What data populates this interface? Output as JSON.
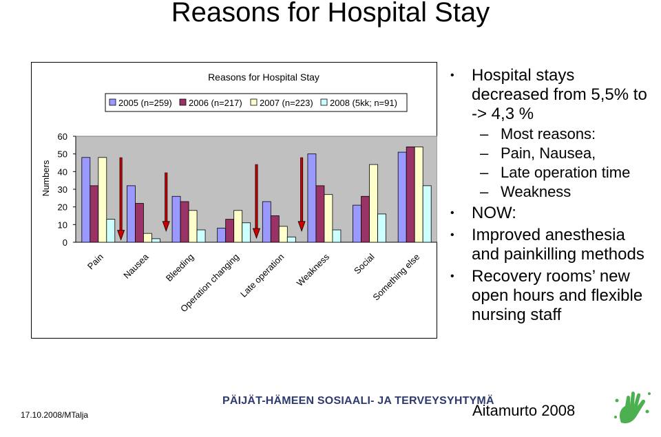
{
  "slide": {
    "title": "Reasons for Hospital Stay",
    "footer_date": "17.10.2008/MTalja",
    "footer_org": "PÄIJÄT-HÄMEEN SOSIAALI- JA TERVEYSYHTYMÄ",
    "footer_author": "Aitamurto 2008",
    "logo_icon": "green-handprint-logo-icon"
  },
  "bullets": [
    {
      "level": 1,
      "text": "Hospital stays decreased from 5,5% to -> 4,3 %"
    },
    {
      "level": 2,
      "text": "Most reasons:"
    },
    {
      "level": 2,
      "text": " Pain, Nausea,"
    },
    {
      "level": 2,
      "text": " Late operation time"
    },
    {
      "level": 2,
      "text": "Weakness"
    },
    {
      "level": 1,
      "text": "NOW:"
    },
    {
      "level": 1,
      "text": "Improved anesthesia and painkilling methods"
    },
    {
      "level": 1,
      "text": "Recovery rooms’ new open hours and flexible nursing staff"
    }
  ],
  "chart_data": {
    "type": "bar",
    "title": "Reasons for Hospital Stay",
    "ylabel": "Numbers",
    "xlabel": "",
    "ylim": [
      0,
      60
    ],
    "yticks": [
      0,
      10,
      20,
      30,
      40,
      50,
      60
    ],
    "legend_position": "top",
    "categories": [
      "Pain",
      "Nausea",
      "Bleeding",
      "Operation changing",
      "Late operation",
      "Weakness",
      "Social",
      "Something else"
    ],
    "series": [
      {
        "name": "2005 (n=259)",
        "color": "#9999ff",
        "values": [
          48,
          32,
          26,
          8,
          23,
          50,
          21,
          51
        ]
      },
      {
        "name": "2006 (n=217)",
        "color": "#993366",
        "values": [
          32,
          22,
          23,
          13,
          15,
          32,
          26,
          54
        ]
      },
      {
        "name": "2007 (n=223)",
        "color": "#ffffcc",
        "values": [
          48,
          5,
          18,
          18,
          9,
          27,
          44,
          54
        ]
      },
      {
        "name": "2008 (5kk; n=91)",
        "color": "#ccffff",
        "values": [
          13,
          2,
          7,
          11,
          3,
          7,
          16,
          32
        ]
      }
    ],
    "arrows": [
      {
        "category": "Nausea",
        "color": "#cc0000"
      },
      {
        "category": "Bleeding",
        "color": "#cc0000"
      },
      {
        "category": "Late operation",
        "color": "#cc0000"
      },
      {
        "category": "Weakness",
        "color": "#cc0000"
      }
    ],
    "plot_background": "#c0c0c0",
    "grid": false
  }
}
